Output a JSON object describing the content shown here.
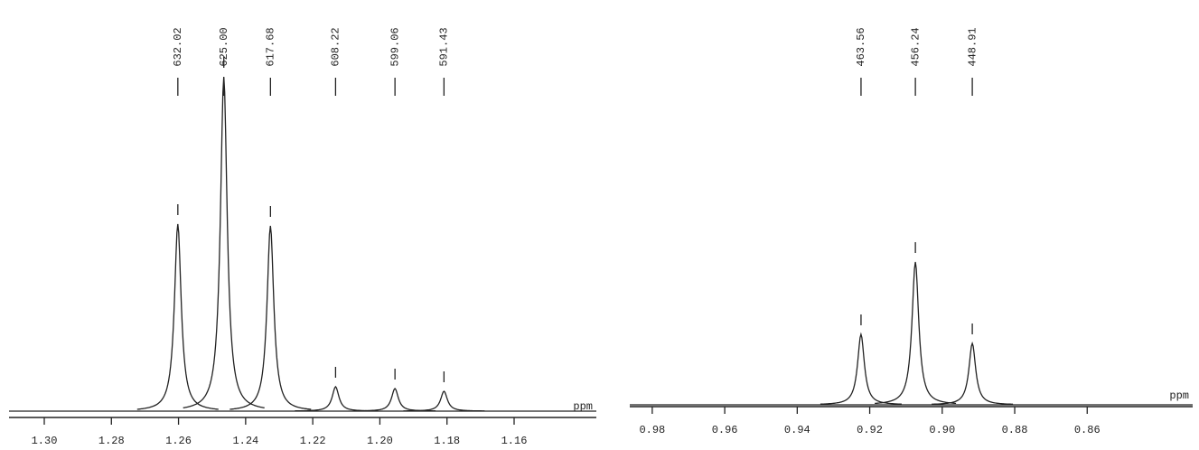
{
  "chart_data": [
    {
      "type": "spectrum",
      "x_label": "ppm",
      "xlim": [
        1.3105,
        1.1355
      ],
      "ylim": [
        0,
        400
      ],
      "xticks": [
        {
          "value": 1.3,
          "label": "1.30"
        },
        {
          "value": 1.28,
          "label": "1.28"
        },
        {
          "value": 1.26,
          "label": "1.26"
        },
        {
          "value": 1.24,
          "label": "1.24"
        },
        {
          "value": 1.22,
          "label": "1.22"
        },
        {
          "value": 1.2,
          "label": "1.20"
        },
        {
          "value": 1.18,
          "label": "1.18"
        },
        {
          "value": 1.16,
          "label": "1.16"
        }
      ],
      "x": [
        1.2602,
        1.2465,
        1.2326,
        1.2132,
        1.1955,
        1.1809
      ],
      "values": [
        207,
        370,
        205,
        27,
        25,
        22
      ],
      "peak_labels": [
        "632.02",
        "625.00",
        "617.68",
        "608.22",
        "599.06",
        "591.43"
      ],
      "color": "#222222"
    },
    {
      "type": "spectrum",
      "x_label": "ppm",
      "xlim": [
        0.9862,
        0.8309
      ],
      "ylim": [
        0,
        400
      ],
      "xticks": [
        {
          "value": 0.98,
          "label": "0.98"
        },
        {
          "value": 0.96,
          "label": "0.96"
        },
        {
          "value": 0.94,
          "label": "0.94"
        },
        {
          "value": 0.92,
          "label": "0.92"
        },
        {
          "value": 0.9,
          "label": "0.90"
        },
        {
          "value": 0.88,
          "label": "0.88"
        },
        {
          "value": 0.86,
          "label": "0.86"
        }
      ],
      "x": [
        0.9224,
        0.9074,
        0.8917
      ],
      "values": [
        78,
        158,
        68
      ],
      "peak_labels": [
        "463.56",
        "456.24",
        "448.91"
      ],
      "color": "#222222"
    }
  ]
}
